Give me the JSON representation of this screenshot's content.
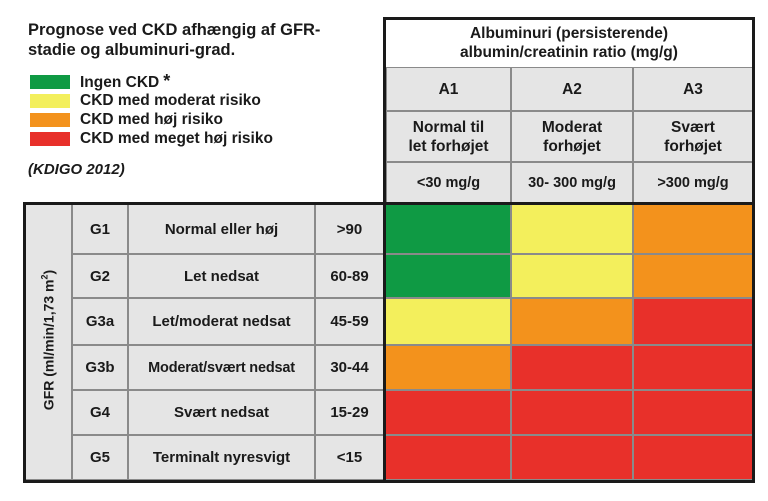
{
  "title_line1": "Prognose ved CKD afhængig af GFR-",
  "title_line2": "stadie og albuminuri-grad.",
  "legend": [
    {
      "label": "Ingen CKD",
      "suffix": "*",
      "color": "#0f9a44"
    },
    {
      "label": "CKD med moderat risiko",
      "suffix": "",
      "color": "#f3ef5c"
    },
    {
      "label": "CKD med høj risiko",
      "suffix": "",
      "color": "#f3921c"
    },
    {
      "label": "CKD med meget høj risiko",
      "suffix": "",
      "color": "#e8302a"
    }
  ],
  "source": "(KDIGO 2012)",
  "albuminuria_header_line1": "Albuminuri (persisterende)",
  "albuminuria_header_line2": "albumin/creatinin ratio (mg/g)",
  "columns": [
    {
      "code": "A1",
      "desc_line1": "Normal til",
      "desc_line2": "let forhøjet",
      "range": "<30 mg/g"
    },
    {
      "code": "A2",
      "desc_line1": "Moderat",
      "desc_line2": "forhøjet",
      "range": "30- 300 mg/g"
    },
    {
      "code": "A3",
      "desc_line1": "Svært",
      "desc_line2": "forhøjet",
      "range": ">300 mg/g"
    }
  ],
  "gfr_axis_label_main": "GFR (ml/min/1,73 m",
  "gfr_axis_label_sup": "2",
  "gfr_axis_label_end": ")",
  "rows": [
    {
      "stage": "G1",
      "desc": "Normal eller høj",
      "range": ">90",
      "risk": [
        "green",
        "yellow",
        "orange"
      ]
    },
    {
      "stage": "G2",
      "desc": "Let nedsat",
      "range": "60-89",
      "risk": [
        "green",
        "yellow",
        "orange"
      ]
    },
    {
      "stage": "G3a",
      "desc": "Let/moderat nedsat",
      "range": "45-59",
      "risk": [
        "yellow",
        "orange",
        "red"
      ]
    },
    {
      "stage": "G3b",
      "desc": "Moderat/svært nedsat",
      "range": "30-44",
      "risk": [
        "orange",
        "red",
        "red"
      ]
    },
    {
      "stage": "G4",
      "desc": "Svært nedsat",
      "range": "15-29",
      "risk": [
        "red",
        "red",
        "red"
      ]
    },
    {
      "stage": "G5",
      "desc": "Terminalt nyresvigt",
      "range": "<15",
      "risk": [
        "red",
        "red",
        "red"
      ]
    }
  ],
  "risk_colors": {
    "green": "#0f9a44",
    "yellow": "#f3ef5c",
    "orange": "#f3921c",
    "red": "#e8302a"
  }
}
